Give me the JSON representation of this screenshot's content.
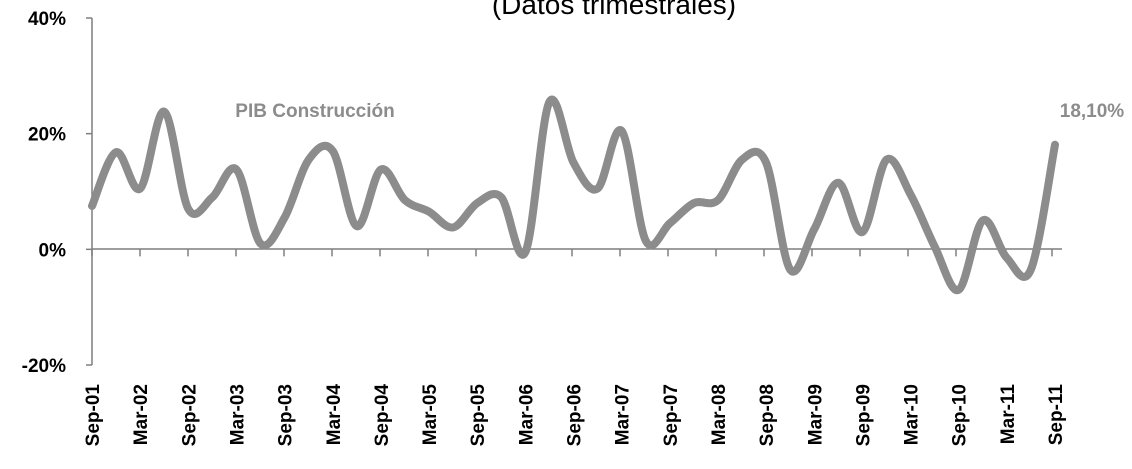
{
  "chart_data": {
    "type": "line",
    "title": "(Datos trimestrales)",
    "xlabel": "",
    "ylabel": "",
    "ylim": [
      -20,
      40
    ],
    "y_ticks": [
      "40%",
      "20%",
      "0%",
      "-20%"
    ],
    "y_tick_values": [
      40,
      20,
      0,
      -20
    ],
    "grid": false,
    "x_tick_labels": [
      "Sep-01",
      "Mar-02",
      "Sep-02",
      "Mar-03",
      "Sep-03",
      "Mar-04",
      "Sep-04",
      "Mar-05",
      "Sep-05",
      "Mar-06",
      "Sep-06",
      "Mar-07",
      "Sep-07",
      "Mar-08",
      "Sep-08",
      "Mar-09",
      "Sep-09",
      "Mar-10",
      "Sep-10",
      "Mar-11",
      "Sep-11"
    ],
    "x": [
      "Sep-01",
      "Dec-01",
      "Mar-02",
      "Jun-02",
      "Sep-02",
      "Dec-02",
      "Mar-03",
      "Jun-03",
      "Sep-03",
      "Dec-03",
      "Mar-04",
      "Jun-04",
      "Sep-04",
      "Dec-04",
      "Mar-05",
      "Jun-05",
      "Sep-05",
      "Dec-05",
      "Mar-06",
      "Jun-06",
      "Sep-06",
      "Dec-06",
      "Mar-07",
      "Jun-07",
      "Sep-07",
      "Dec-07",
      "Mar-08",
      "Jun-08",
      "Sep-08",
      "Dec-08",
      "Mar-09",
      "Jun-09",
      "Sep-09",
      "Dec-09",
      "Mar-10",
      "Jun-10",
      "Sep-10",
      "Dec-10",
      "Mar-11",
      "Jun-11",
      "Sep-11"
    ],
    "series": [
      {
        "name": "PIB Construcción",
        "color": "#8c8c8c",
        "values": [
          7.5,
          16.8,
          10.5,
          23.8,
          7.0,
          9.0,
          13.8,
          1.0,
          5.5,
          15.5,
          17.0,
          4.0,
          13.8,
          8.5,
          6.5,
          3.8,
          8.0,
          9.0,
          -0.5,
          25.5,
          15.0,
          10.5,
          20.5,
          1.5,
          4.5,
          8.0,
          8.5,
          15.5,
          15.0,
          -3.5,
          3.5,
          11.5,
          3.0,
          15.5,
          9.5,
          0.5,
          -7.0,
          5.0,
          -1.5,
          -3.5,
          18.1
        ]
      }
    ],
    "annotations": [
      {
        "text": "PIB Construcción"
      },
      {
        "text": "18,10%"
      }
    ]
  }
}
